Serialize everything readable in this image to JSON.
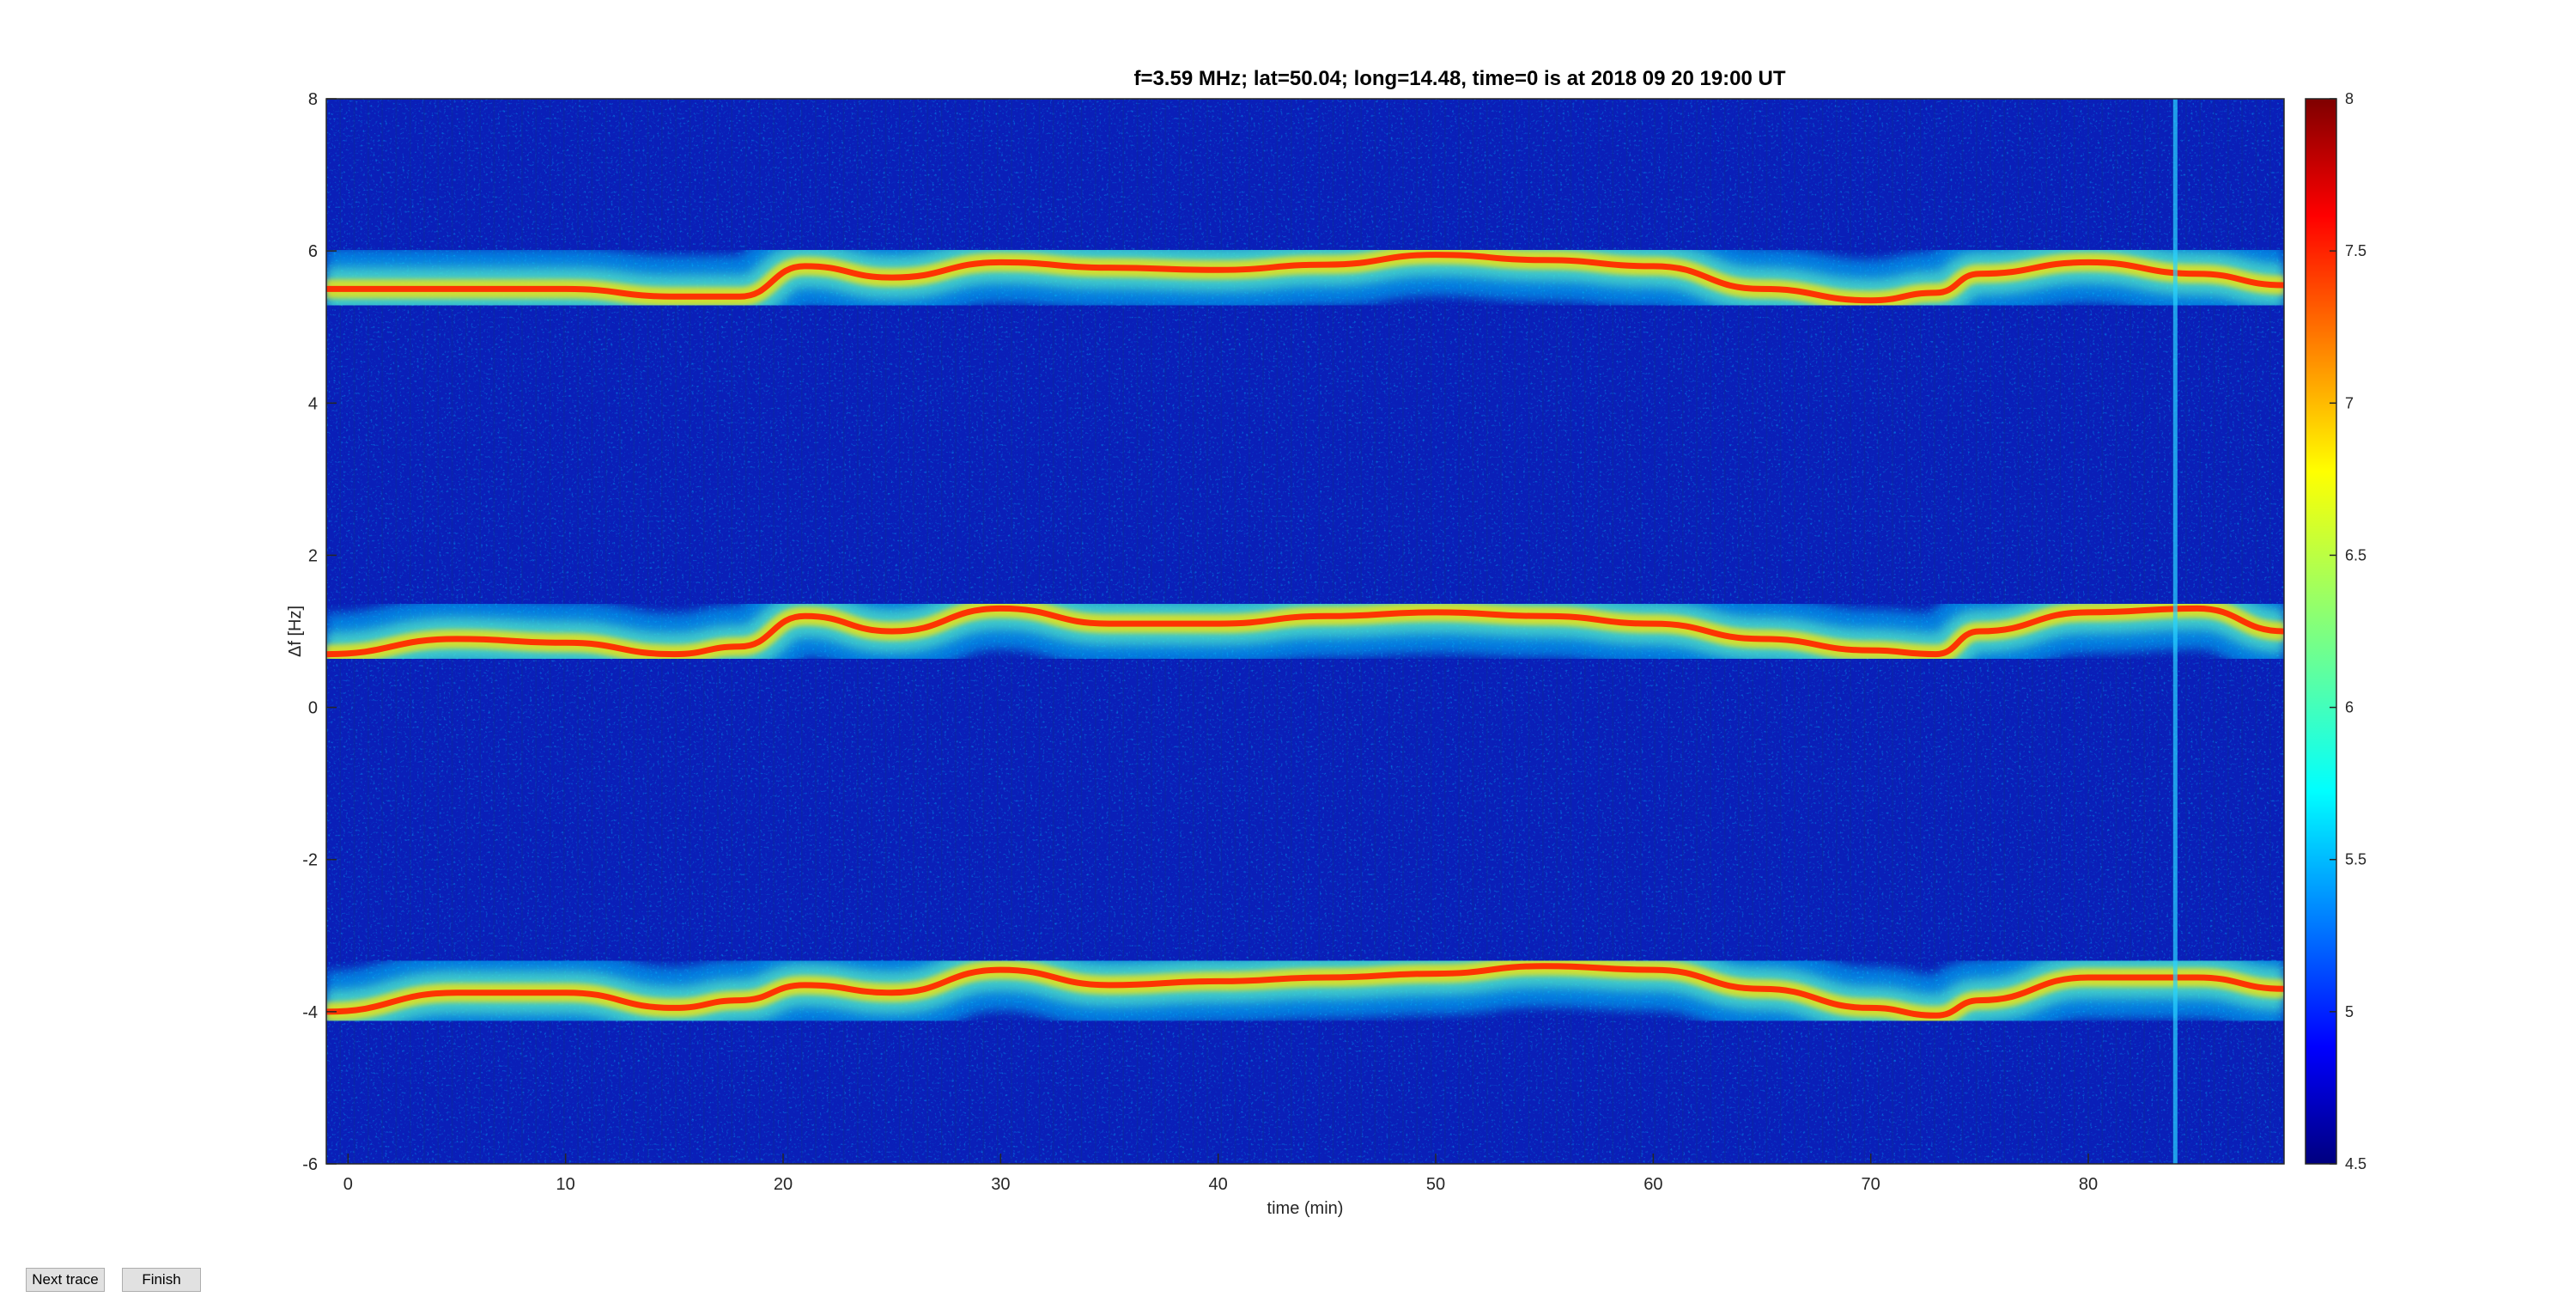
{
  "chart_data": {
    "type": "heatmap",
    "title": "f=3.59 MHz;  lat=50.04; long=14.48, time=0 is at 2018 09 20 19:00 UT",
    "xlabel": "time (min)",
    "ylabel": "Δf [Hz]",
    "xlim": [
      -1,
      89
    ],
    "ylim": [
      -6,
      8
    ],
    "x_ticks": [
      0,
      10,
      20,
      30,
      40,
      50,
      60,
      70,
      80
    ],
    "x_tick_labels": [
      "0",
      "10",
      "20",
      "30",
      "40",
      "50",
      "60",
      "70",
      "80"
    ],
    "y_ticks": [
      8,
      6,
      4,
      2,
      0,
      -2,
      -4,
      -6
    ],
    "y_tick_labels": [
      "8",
      "6",
      "4",
      "2",
      "0",
      "-2",
      "-4",
      "-6"
    ],
    "colorbar": {
      "range": [
        4.5,
        8
      ],
      "ticks": [
        8,
        7.5,
        7,
        6.5,
        6,
        5.5,
        5,
        4.5
      ],
      "tick_labels": [
        "8",
        "7.5",
        "7",
        "6.5",
        "6",
        "5.5",
        "5",
        "4.5"
      ],
      "colormap": "jet"
    },
    "traces": [
      {
        "time": [
          -1,
          5,
          10,
          15,
          18,
          21,
          25,
          30,
          35,
          40,
          45,
          50,
          55,
          60,
          65,
          70,
          73,
          75,
          80,
          85,
          89
        ],
        "df": [
          5.5,
          5.5,
          5.5,
          5.4,
          5.4,
          5.8,
          5.65,
          5.85,
          5.78,
          5.75,
          5.82,
          5.95,
          5.88,
          5.8,
          5.5,
          5.35,
          5.45,
          5.7,
          5.85,
          5.7,
          5.55
        ]
      },
      {
        "time": [
          -1,
          5,
          10,
          15,
          18,
          21,
          25,
          30,
          35,
          40,
          45,
          50,
          55,
          60,
          65,
          70,
          73,
          75,
          80,
          85,
          89
        ],
        "df": [
          0.7,
          0.9,
          0.85,
          0.7,
          0.8,
          1.2,
          1.0,
          1.3,
          1.1,
          1.1,
          1.2,
          1.25,
          1.2,
          1.1,
          0.9,
          0.75,
          0.7,
          1.0,
          1.25,
          1.3,
          1.0
        ]
      },
      {
        "time": [
          -1,
          5,
          10,
          15,
          18,
          21,
          25,
          30,
          35,
          40,
          45,
          50,
          55,
          60,
          65,
          70,
          73,
          75,
          80,
          85,
          89
        ],
        "df": [
          -4.0,
          -3.75,
          -3.75,
          -3.95,
          -3.85,
          -3.65,
          -3.75,
          -3.45,
          -3.65,
          -3.6,
          -3.55,
          -3.5,
          -3.4,
          -3.45,
          -3.7,
          -3.95,
          -4.05,
          -3.85,
          -3.55,
          -3.55,
          -3.7
        ]
      }
    ]
  },
  "controls": {
    "next_trace_label": "Next trace",
    "finish_label": "Finish"
  }
}
